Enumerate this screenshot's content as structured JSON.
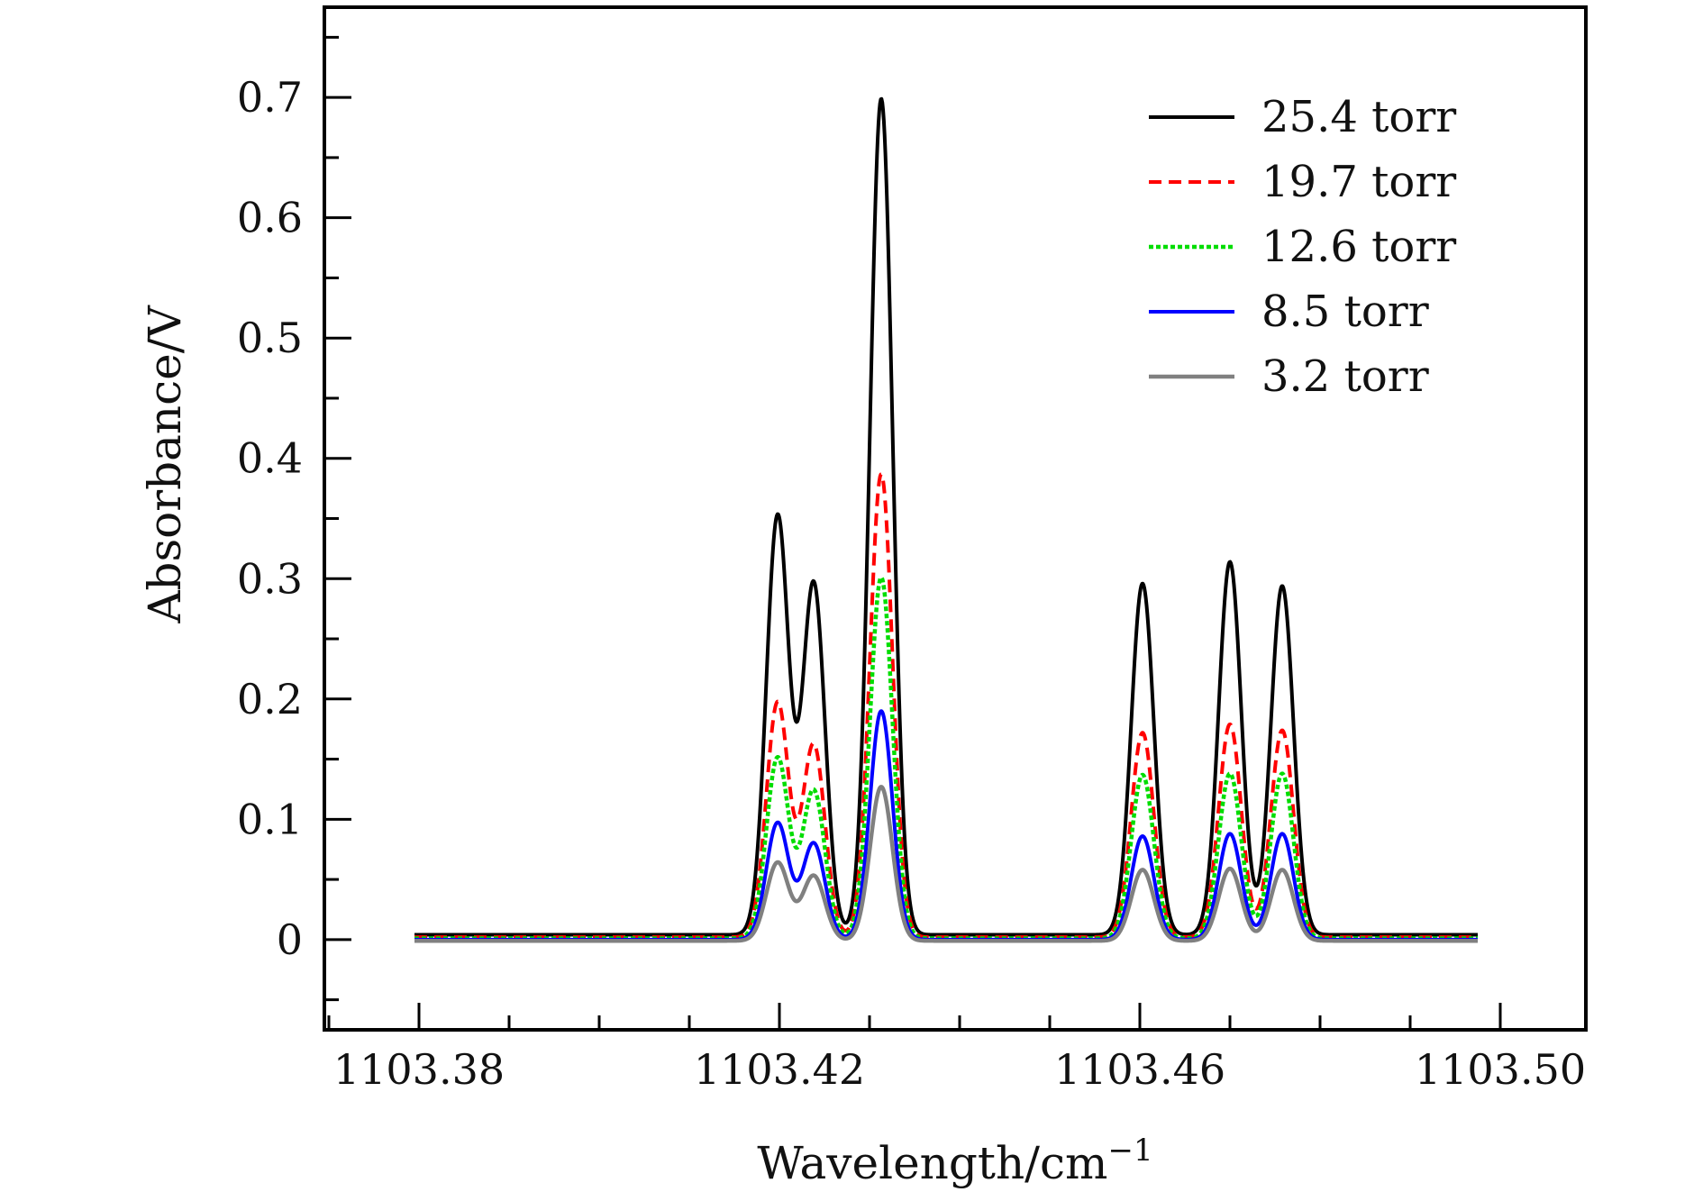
{
  "chart_data": {
    "type": "line",
    "xlabel": "Wavelength/cm",
    "xlabel_superscript": "−1",
    "ylabel": "Absorbance/V",
    "xlim": [
      1103.3695,
      1103.5095
    ],
    "ylim": [
      -0.075,
      0.775
    ],
    "x_ticks": [
      1103.38,
      1103.42,
      1103.46,
      1103.5
    ],
    "x_tick_labels": [
      "1103.38",
      "1103.42",
      "1103.46",
      "1103.50"
    ],
    "x_minor_step": 0.01,
    "y_ticks": [
      0,
      0.1,
      0.2,
      0.3,
      0.4,
      0.5,
      0.6,
      0.7
    ],
    "y_tick_labels": [
      "0",
      "0.1",
      "0.2",
      "0.3",
      "0.4",
      "0.5",
      "0.6",
      "0.7"
    ],
    "y_minor_step": 0.05,
    "x_range": [
      1103.3795,
      1103.4975
    ],
    "grid": false,
    "legend_position": "top-right",
    "peak_centers": [
      1103.4198,
      1103.4238,
      1103.4313,
      1103.4603,
      1103.47,
      1103.4758
    ],
    "series": [
      {
        "name": "25.4 torr",
        "color": "#000000",
        "style": "solid",
        "width": 4,
        "baseline": 0.004,
        "peak_width": 0.00125,
        "peak_heights": [
          0.348,
          0.292,
          0.695,
          0.292,
          0.31,
          0.29
        ]
      },
      {
        "name": "19.7 torr",
        "color": "#ff0000",
        "style": "dashed",
        "width": 4,
        "baseline": 0.002,
        "peak_width": 0.00125,
        "peak_heights": [
          0.195,
          0.16,
          0.385,
          0.17,
          0.177,
          0.172
        ]
      },
      {
        "name": "12.6 torr",
        "color": "#00dd00",
        "style": "dotted",
        "width": 4.5,
        "baseline": 0.001,
        "peak_width": 0.00125,
        "peak_heights": [
          0.15,
          0.123,
          0.3,
          0.136,
          0.137,
          0.137
        ]
      },
      {
        "name": "8.5 torr",
        "color": "#0000ff",
        "style": "solid",
        "width": 4,
        "baseline": 0.0,
        "peak_width": 0.00125,
        "peak_heights": [
          0.097,
          0.08,
          0.19,
          0.086,
          0.088,
          0.088
        ]
      },
      {
        "name": "3.2 torr",
        "color": "#808080",
        "style": "solid",
        "width": 4.5,
        "baseline": -0.001,
        "peak_width": 0.00125,
        "peak_heights": [
          0.065,
          0.054,
          0.128,
          0.059,
          0.06,
          0.059
        ]
      }
    ]
  }
}
